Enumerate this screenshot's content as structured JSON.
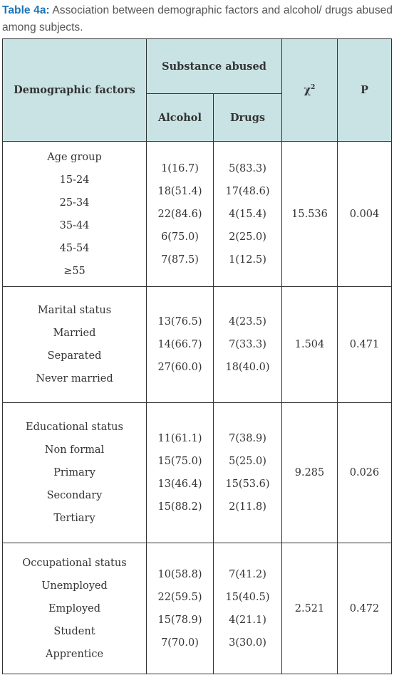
{
  "caption": {
    "label": "Table 4a:",
    "text": " Association between demographic factors and alcohol/ drugs abused among subjects."
  },
  "header": {
    "demographic": "Demographic factors",
    "substance": "Substance abused",
    "chi": "χ",
    "chi_sup": "2",
    "p": "P",
    "alcohol": "Alcohol",
    "drugs": "Drugs"
  },
  "groups": [
    {
      "title": "Age group",
      "rows": [
        "15-24",
        "25-34",
        "35-44",
        "45-54",
        "≥55"
      ],
      "alcohol": [
        "1(16.7)",
        "18(51.4)",
        "22(84.6)",
        "6(75.0)",
        "7(87.5)"
      ],
      "drugs": [
        "5(83.3)",
        "17(48.6)",
        "4(15.4)",
        "2(25.0)",
        "1(12.5)"
      ],
      "chi": "15.536",
      "p": "0.004"
    },
    {
      "title": "Marital status",
      "rows": [
        "Married",
        "Separated",
        "Never married"
      ],
      "alcohol": [
        "13(76.5)",
        "14(66.7)",
        "27(60.0)"
      ],
      "drugs": [
        "4(23.5)",
        "7(33.3)",
        "18(40.0)"
      ],
      "chi": "1.504",
      "p": "0.471"
    },
    {
      "title": "Educational status",
      "rows": [
        "Non formal",
        "Primary",
        "Secondary",
        "Tertiary"
      ],
      "alcohol": [
        "11(61.1)",
        "15(75.0)",
        "13(46.4)",
        "15(88.2)"
      ],
      "drugs": [
        "7(38.9)",
        "5(25.0)",
        "15(53.6)",
        "2(11.8)"
      ],
      "chi": "9.285",
      "p": "0.026"
    },
    {
      "title": "Occupational status",
      "rows": [
        "Unemployed",
        "Employed",
        "Student",
        "Apprentice"
      ],
      "alcohol": [
        "10(58.8)",
        "22(59.5)",
        "15(78.9)",
        "7(70.0)"
      ],
      "drugs": [
        "7(41.2)",
        "15(40.5)",
        "4(21.1)",
        "3(30.0)"
      ],
      "chi": "2.521",
      "p": "0.472"
    }
  ],
  "colors": {
    "header_bg": "#c9e3e4",
    "caption_label": "#1a75b8",
    "caption_text": "#555555",
    "border": "#333333"
  }
}
